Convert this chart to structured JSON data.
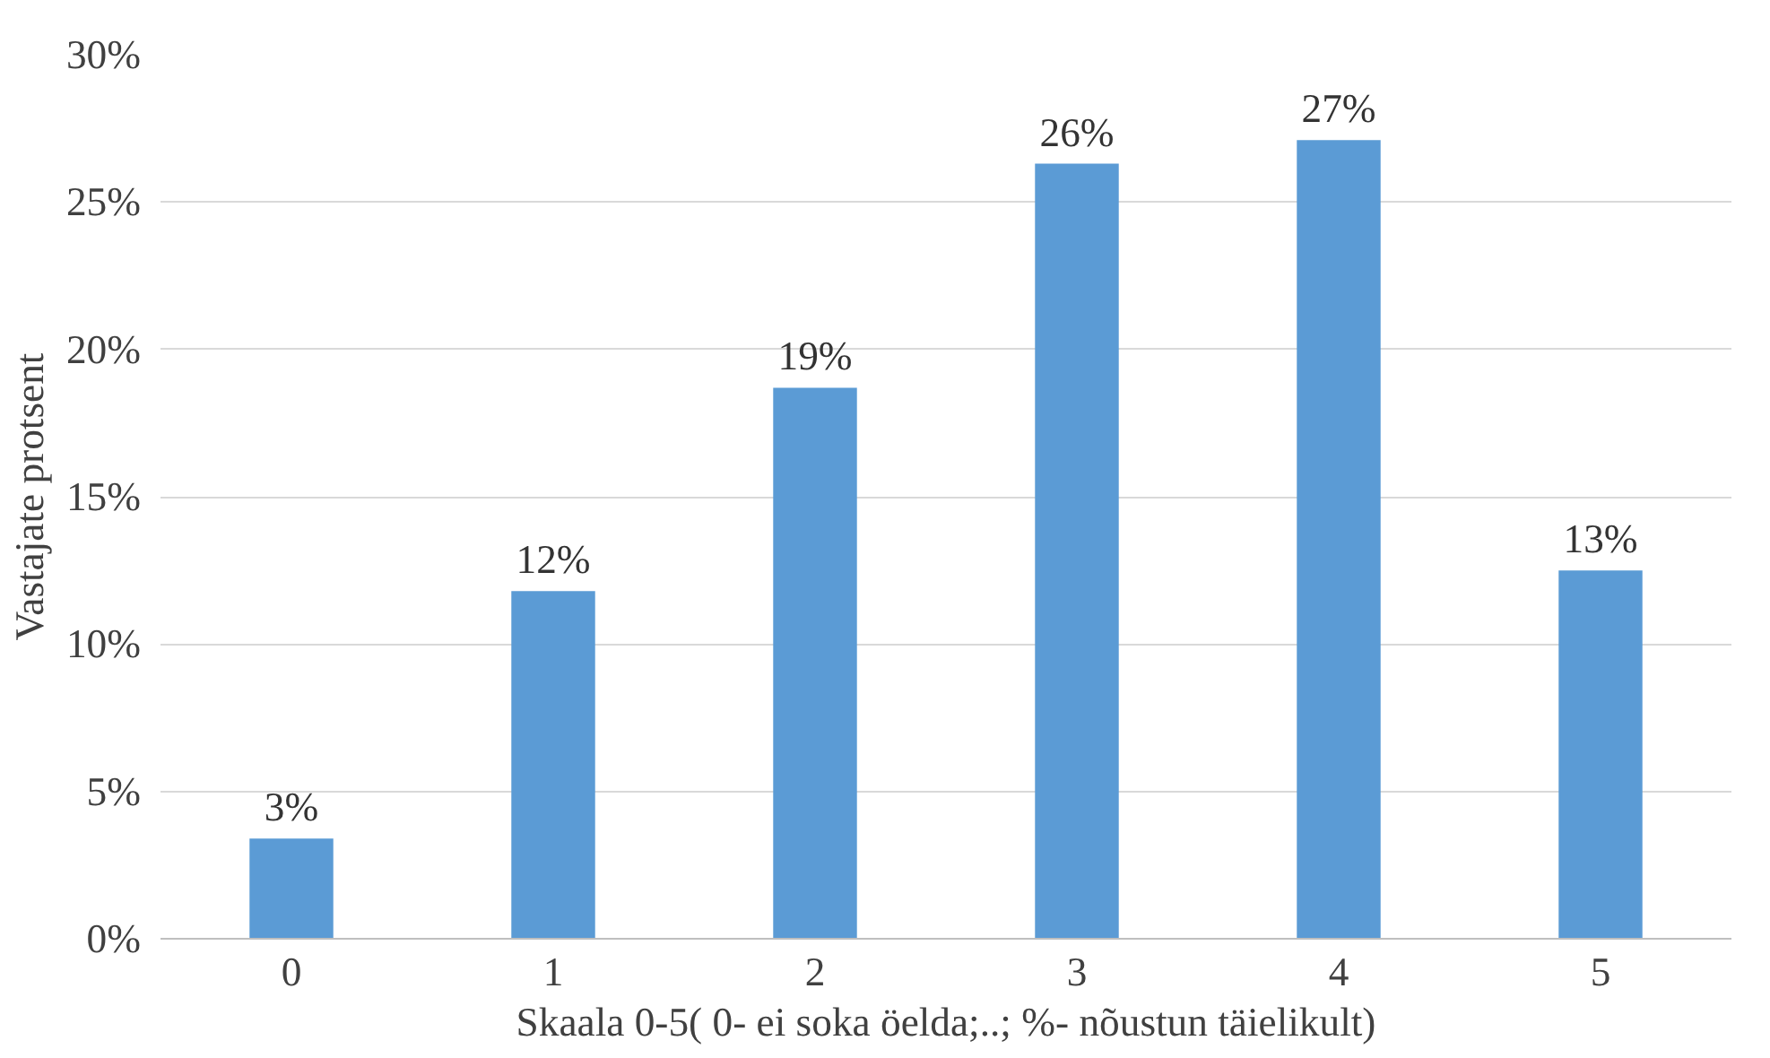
{
  "chart_data": {
    "type": "bar",
    "xlabel": "Skaala 0-5( 0- ei soka öelda;..; %- nõustun täielikult)",
    "ylabel": "Vastajate protsent",
    "categories": [
      "0",
      "1",
      "2",
      "3",
      "4",
      "5"
    ],
    "values": [
      3.4,
      11.8,
      18.7,
      26.3,
      27.1,
      12.5
    ],
    "value_labels": [
      "3%",
      "12%",
      "19%",
      "26%",
      "27%",
      "13%"
    ],
    "color": "#5b9bd5",
    "ylim": [
      0,
      30
    ],
    "yticks": [
      {
        "value": 0,
        "label": "0%"
      },
      {
        "value": 5,
        "label": "5%"
      },
      {
        "value": 10,
        "label": "10%"
      },
      {
        "value": 15,
        "label": "15%"
      },
      {
        "value": 20,
        "label": "20%"
      },
      {
        "value": 25,
        "label": "25%"
      },
      {
        "value": 30,
        "label": "30%"
      }
    ],
    "grid": "y"
  }
}
